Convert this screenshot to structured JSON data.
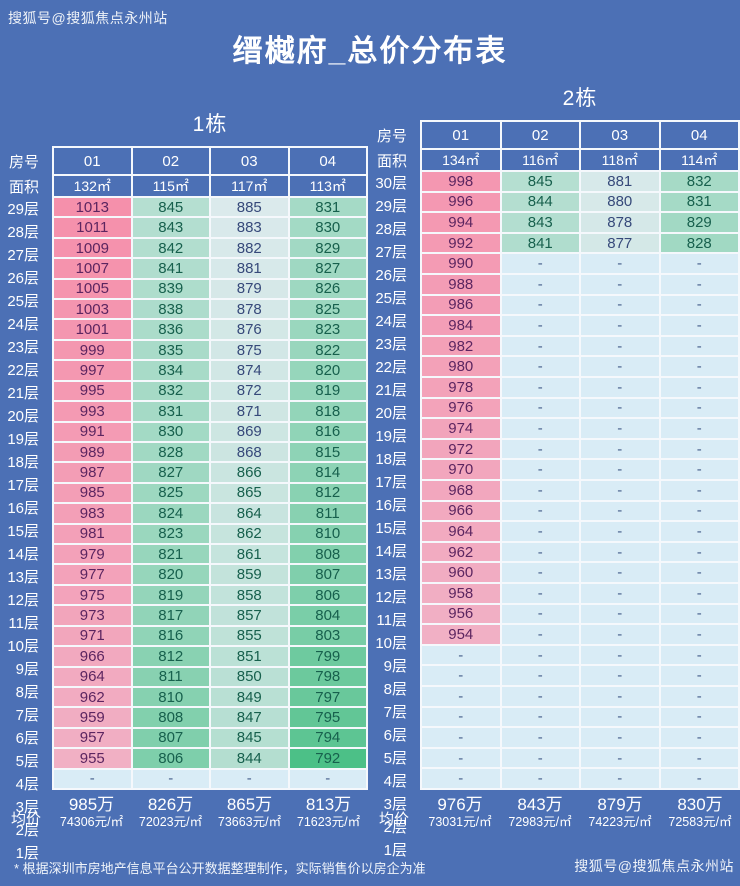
{
  "title": "缙樾府_总价分布表",
  "watermark_top": "搜狐号@搜狐焦点永州站",
  "watermark_bottom": "搜狐号@搜狐焦点永州站",
  "footer_note": "* 根据深圳市房地产信息平台公开数据整理制作，实际销售价以房企为准",
  "colors": {
    "background": "#4c70b5",
    "grid_line": "#f5f8fc",
    "heat_green": "#4cc087",
    "heat_white": "#e9eef6",
    "heat_pink": "#f590ab",
    "dash_bg": "#d9ecf6",
    "dash_text": "#47608c",
    "text_green": "#17604d",
    "text_mid": "#36497a",
    "text_pink": "#5c2560"
  },
  "heat_domain": {
    "min": 792,
    "max": 1013
  },
  "chart_data": {
    "type": "table",
    "tables": [
      {
        "name": "1栋",
        "room_header_label": "房号",
        "area_row_label": "面积",
        "avg_label": "均价",
        "columns": [
          "01",
          "02",
          "03",
          "04"
        ],
        "areas": [
          "132㎡",
          "115㎡",
          "117㎡",
          "113㎡"
        ],
        "floors": [
          "29层",
          "28层",
          "27层",
          "26层",
          "25层",
          "24层",
          "23层",
          "22层",
          "21层",
          "20层",
          "19层",
          "18层",
          "17层",
          "16层",
          "15层",
          "14层",
          "13层",
          "12层",
          "11层",
          "10层",
          "9层",
          "8层",
          "7层",
          "6层",
          "5层",
          "4层",
          "3层",
          "2层",
          "1层"
        ],
        "rows": [
          [
            1013,
            845,
            885,
            831
          ],
          [
            1011,
            843,
            883,
            830
          ],
          [
            1009,
            842,
            882,
            829
          ],
          [
            1007,
            841,
            881,
            827
          ],
          [
            1005,
            839,
            879,
            826
          ],
          [
            1003,
            838,
            878,
            825
          ],
          [
            1001,
            836,
            876,
            823
          ],
          [
            999,
            835,
            875,
            822
          ],
          [
            997,
            834,
            874,
            820
          ],
          [
            995,
            832,
            872,
            819
          ],
          [
            993,
            831,
            871,
            818
          ],
          [
            991,
            830,
            869,
            816
          ],
          [
            989,
            828,
            868,
            815
          ],
          [
            987,
            827,
            866,
            814
          ],
          [
            985,
            825,
            865,
            812
          ],
          [
            983,
            824,
            864,
            811
          ],
          [
            981,
            823,
            862,
            810
          ],
          [
            979,
            821,
            861,
            808
          ],
          [
            977,
            820,
            859,
            807
          ],
          [
            975,
            819,
            858,
            806
          ],
          [
            973,
            817,
            857,
            804
          ],
          [
            971,
            816,
            855,
            803
          ],
          [
            966,
            812,
            851,
            799
          ],
          [
            964,
            811,
            850,
            798
          ],
          [
            962,
            810,
            849,
            797
          ],
          [
            959,
            808,
            847,
            795
          ],
          [
            957,
            807,
            845,
            794
          ],
          [
            955,
            806,
            844,
            792
          ],
          [
            "-",
            "-",
            "-",
            "-"
          ]
        ],
        "averages": [
          {
            "total": "985万",
            "unit": "74306元/㎡"
          },
          {
            "total": "826万",
            "unit": "72023元/㎡"
          },
          {
            "total": "865万",
            "unit": "73663元/㎡"
          },
          {
            "total": "813万",
            "unit": "71623元/㎡"
          }
        ]
      },
      {
        "name": "2栋",
        "room_header_label": "房号",
        "area_row_label": "面积",
        "avg_label": "均价",
        "columns": [
          "01",
          "02",
          "03",
          "04"
        ],
        "areas": [
          "134㎡",
          "116㎡",
          "118㎡",
          "114㎡"
        ],
        "floors": [
          "30层",
          "29层",
          "28层",
          "27层",
          "26层",
          "25层",
          "24层",
          "23层",
          "22层",
          "21层",
          "20层",
          "19层",
          "18层",
          "17层",
          "16层",
          "15层",
          "14层",
          "13层",
          "12层",
          "11层",
          "10层",
          "9层",
          "8层",
          "7层",
          "6层",
          "5层",
          "4层",
          "3层",
          "2层",
          "1层"
        ],
        "rows": [
          [
            998,
            845,
            881,
            832
          ],
          [
            996,
            844,
            880,
            831
          ],
          [
            994,
            843,
            878,
            829
          ],
          [
            992,
            841,
            877,
            828
          ],
          [
            990,
            "-",
            "-",
            "-"
          ],
          [
            988,
            "-",
            "-",
            "-"
          ],
          [
            986,
            "-",
            "-",
            "-"
          ],
          [
            984,
            "-",
            "-",
            "-"
          ],
          [
            982,
            "-",
            "-",
            "-"
          ],
          [
            980,
            "-",
            "-",
            "-"
          ],
          [
            978,
            "-",
            "-",
            "-"
          ],
          [
            976,
            "-",
            "-",
            "-"
          ],
          [
            974,
            "-",
            "-",
            "-"
          ],
          [
            972,
            "-",
            "-",
            "-"
          ],
          [
            970,
            "-",
            "-",
            "-"
          ],
          [
            968,
            "-",
            "-",
            "-"
          ],
          [
            966,
            "-",
            "-",
            "-"
          ],
          [
            964,
            "-",
            "-",
            "-"
          ],
          [
            962,
            "-",
            "-",
            "-"
          ],
          [
            960,
            "-",
            "-",
            "-"
          ],
          [
            958,
            "-",
            "-",
            "-"
          ],
          [
            956,
            "-",
            "-",
            "-"
          ],
          [
            954,
            "-",
            "-",
            "-"
          ],
          [
            "-",
            "-",
            "-",
            "-"
          ],
          [
            "-",
            "-",
            "-",
            "-"
          ],
          [
            "-",
            "-",
            "-",
            "-"
          ],
          [
            "-",
            "-",
            "-",
            "-"
          ],
          [
            "-",
            "-",
            "-",
            "-"
          ],
          [
            "-",
            "-",
            "-",
            "-"
          ],
          [
            "-",
            "-",
            "-",
            "-"
          ]
        ],
        "averages": [
          {
            "total": "976万",
            "unit": "73031元/㎡"
          },
          {
            "total": "843万",
            "unit": "72983元/㎡"
          },
          {
            "total": "879万",
            "unit": "74223元/㎡"
          },
          {
            "total": "830万",
            "unit": "72583元/㎡"
          }
        ]
      }
    ]
  }
}
